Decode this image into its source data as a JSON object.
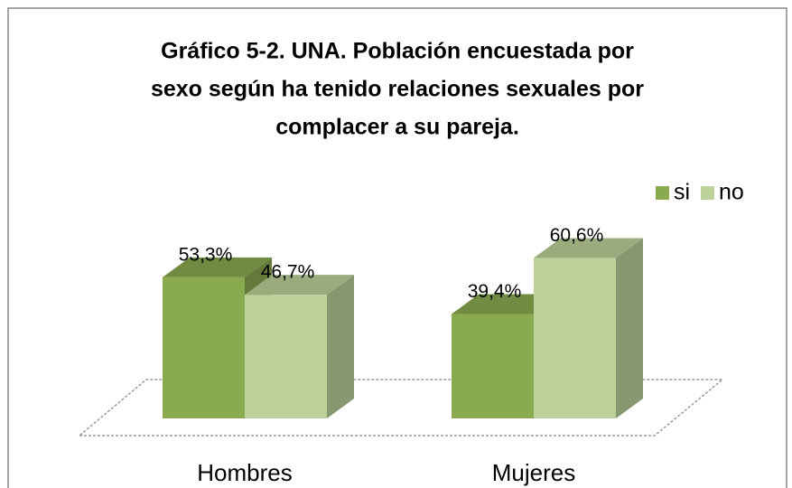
{
  "chart_data": {
    "type": "bar3d",
    "title": [
      "Gráfico 5-2. UNA. Población encuestada por",
      "sexo según ha tenido relaciones sexuales por",
      "complacer a su pareja."
    ],
    "categories": [
      "Hombres",
      "Mujeres"
    ],
    "series": [
      {
        "name": "si",
        "color": "#8aaa50",
        "values": [
          53.3,
          39.4
        ],
        "value_labels": [
          "53,3%",
          "39,4%"
        ]
      },
      {
        "name": "no",
        "color": "#bcd29a",
        "values": [
          46.7,
          60.6
        ],
        "value_labels": [
          "46,7%",
          "60,6%"
        ]
      }
    ],
    "legend": "top-right"
  }
}
